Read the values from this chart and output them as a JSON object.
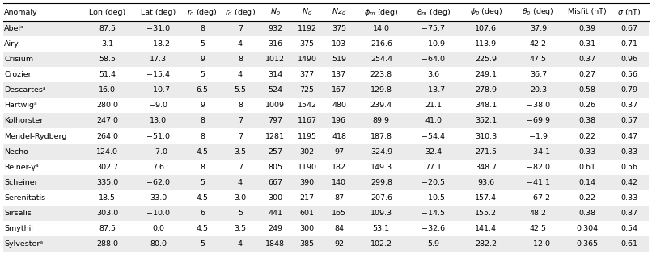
{
  "rows": [
    [
      "Abelᵃ",
      "87.5",
      "−31.0",
      "8",
      "7",
      "932",
      "1192",
      "375",
      "14.0",
      "−75.7",
      "107.6",
      "37.9",
      "0.39",
      "0.67"
    ],
    [
      "Airy",
      "3.1",
      "−18.2",
      "5",
      "4",
      "316",
      "375",
      "103",
      "216.6",
      "−10.9",
      "113.9",
      "42.2",
      "0.31",
      "0.71"
    ],
    [
      "Crisium",
      "58.5",
      "17.3",
      "9",
      "8",
      "1012",
      "1490",
      "519",
      "254.4",
      "−64.0",
      "225.9",
      "47.5",
      "0.37",
      "0.96"
    ],
    [
      "Crozier",
      "51.4",
      "−15.4",
      "5",
      "4",
      "314",
      "377",
      "137",
      "223.8",
      "3.6",
      "249.1",
      "36.7",
      "0.27",
      "0.56"
    ],
    [
      "Descartesᵃ",
      "16.0",
      "−10.7",
      "6.5",
      "5.5",
      "524",
      "725",
      "167",
      "129.8",
      "−13.7",
      "278.9",
      "20.3",
      "0.58",
      "0.79"
    ],
    [
      "Hartwigᵃ",
      "280.0",
      "−9.0",
      "9",
      "8",
      "1009",
      "1542",
      "480",
      "239.4",
      "21.1",
      "348.1",
      "−38.0",
      "0.26",
      "0.37"
    ],
    [
      "Kolhorster",
      "247.0",
      "13.0",
      "8",
      "7",
      "797",
      "1167",
      "196",
      "89.9",
      "41.0",
      "352.1",
      "−69.9",
      "0.38",
      "0.57"
    ],
    [
      "Mendel-Rydberg",
      "264.0",
      "−51.0",
      "8",
      "7",
      "1281",
      "1195",
      "418",
      "187.8",
      "−54.4",
      "310.3",
      "−1.9",
      "0.22",
      "0.47"
    ],
    [
      "Necho",
      "124.0",
      "−7.0",
      "4.5",
      "3.5",
      "257",
      "302",
      "97",
      "324.9",
      "32.4",
      "271.5",
      "−34.1",
      "0.33",
      "0.83"
    ],
    [
      "Reiner-γᵃ",
      "302.7",
      "7.6",
      "8",
      "7",
      "805",
      "1190",
      "182",
      "149.3",
      "77.1",
      "348.7",
      "−82.0",
      "0.61",
      "0.56"
    ],
    [
      "Scheiner",
      "335.0",
      "−62.0",
      "5",
      "4",
      "667",
      "390",
      "140",
      "299.8",
      "−20.5",
      "93.6",
      "−41.1",
      "0.14",
      "0.42"
    ],
    [
      "Serenitatis",
      "18.5",
      "33.0",
      "4.5",
      "3.0",
      "300",
      "217",
      "87",
      "207.6",
      "−10.5",
      "157.4",
      "−67.2",
      "0.22",
      "0.33"
    ],
    [
      "Sirsalis",
      "303.0",
      "−10.0",
      "6",
      "5",
      "441",
      "601",
      "165",
      "109.3",
      "−14.5",
      "155.2",
      "48.2",
      "0.38",
      "0.87"
    ],
    [
      "Smythii",
      "87.5",
      "0.0",
      "4.5",
      "3.5",
      "249",
      "300",
      "84",
      "53.1",
      "−32.6",
      "141.4",
      "42.5",
      "0.304",
      "0.54"
    ],
    [
      "Sylvesterᵃ",
      "288.0",
      "80.0",
      "5",
      "4",
      "1848",
      "385",
      "92",
      "102.2",
      "5.9",
      "282.2",
      "−12.0",
      "0.365",
      "0.61"
    ]
  ],
  "alt_row_color": "#ebebeb",
  "font_size": 6.8,
  "header_font_size": 6.8
}
